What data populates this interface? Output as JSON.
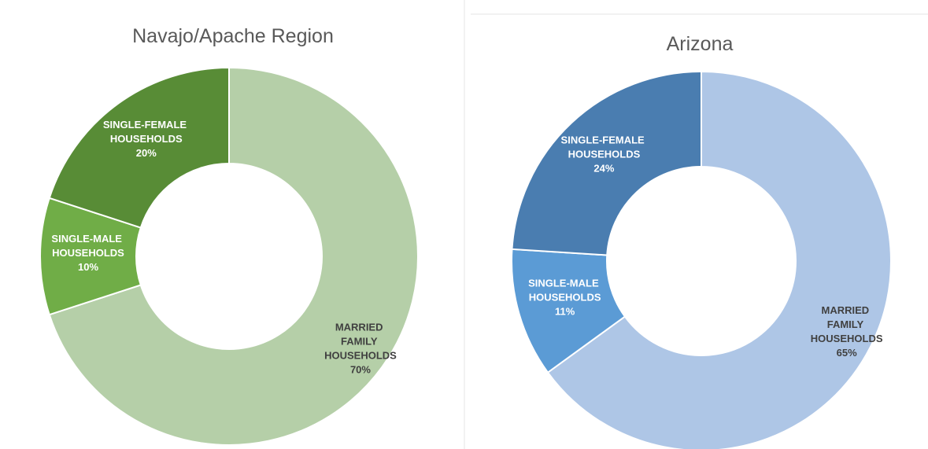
{
  "chart_data": [
    {
      "type": "donut",
      "title": "Navajo/Apache Region",
      "categories": [
        "MARRIED FAMILY HOUSEHOLDS",
        "SINGLE-MALE HOUSEHOLDS",
        "SINGLE-FEMALE HOUSEHOLDS"
      ],
      "values": [
        70,
        10,
        20
      ],
      "value_labels": [
        "70%",
        "10%",
        "20%"
      ],
      "colors": [
        "#b5cfa8",
        "#70ad47",
        "#588c36"
      ]
    },
    {
      "type": "donut",
      "title": "Arizona",
      "categories": [
        "MARRIED FAMILY HOUSEHOLDS",
        "SINGLE-MALE HOUSEHOLDS",
        "SINGLE-FEMALE HOUSEHOLDS"
      ],
      "values": [
        65,
        11,
        24
      ],
      "value_labels": [
        "65%",
        "11%",
        "24%"
      ],
      "colors": [
        "#aec6e6",
        "#5b9bd5",
        "#4a7db0"
      ]
    }
  ]
}
